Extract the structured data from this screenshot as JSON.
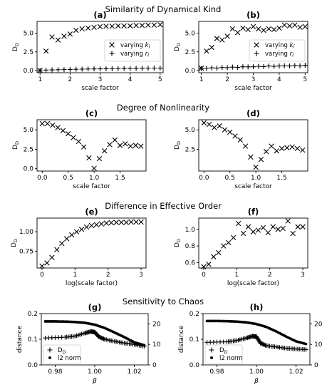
{
  "sections": [
    "Similarity of Dynamical Kind",
    "Degree of Nonlinearity",
    "Difference in Effective Order",
    "Sensitivity to Chaos"
  ],
  "chart_data": [
    {
      "id": "a",
      "title": "(a)",
      "type": "scatter",
      "xlabel": "scale factor",
      "ylabel": "D_D",
      "xlim": [
        0.9,
        5.1
      ],
      "ylim": [
        -0.3,
        6.6
      ],
      "xticks": [
        1,
        2,
        3,
        4,
        5
      ],
      "yticks": [
        0.0,
        2.5,
        5.0
      ],
      "legend": "center-right",
      "series": [
        {
          "name": "varying k_i",
          "marker": "x",
          "x": [
            1.0,
            1.2,
            1.4,
            1.6,
            1.8,
            2.0,
            2.2,
            2.4,
            2.6,
            2.8,
            3.0,
            3.2,
            3.4,
            3.6,
            3.8,
            4.0,
            4.2,
            4.4,
            4.6,
            4.8,
            5.0
          ],
          "y": [
            0.0,
            2.6,
            4.5,
            4.1,
            4.6,
            4.9,
            5.4,
            5.6,
            5.7,
            5.8,
            5.9,
            5.95,
            5.95,
            6.0,
            6.0,
            6.0,
            6.05,
            6.05,
            6.1,
            6.1,
            6.15
          ]
        },
        {
          "name": "varying r_i",
          "marker": "+",
          "x": [
            1.0,
            1.2,
            1.4,
            1.6,
            1.8,
            2.0,
            2.2,
            2.4,
            2.6,
            2.8,
            3.0,
            3.2,
            3.4,
            3.6,
            3.8,
            4.0,
            4.2,
            4.4,
            4.6,
            4.8,
            5.0
          ],
          "y": [
            0.0,
            0.05,
            0.08,
            0.1,
            0.12,
            0.14,
            0.16,
            0.18,
            0.2,
            0.21,
            0.22,
            0.23,
            0.24,
            0.25,
            0.26,
            0.27,
            0.28,
            0.29,
            0.3,
            0.31,
            0.32
          ]
        }
      ]
    },
    {
      "id": "b",
      "title": "(b)",
      "type": "scatter",
      "xlabel": "scale factor",
      "ylabel": "D_D",
      "xlim": [
        0.9,
        5.1
      ],
      "ylim": [
        -0.3,
        6.6
      ],
      "xticks": [
        1,
        2,
        3,
        4,
        5
      ],
      "yticks": [
        0.0,
        2.5,
        5.0
      ],
      "legend": "center-right",
      "series": [
        {
          "name": "varying k_i",
          "marker": "x",
          "x": [
            1.0,
            1.2,
            1.4,
            1.6,
            1.8,
            2.0,
            2.2,
            2.4,
            2.6,
            2.8,
            3.0,
            3.2,
            3.4,
            3.6,
            3.8,
            4.0,
            4.2,
            4.4,
            4.6,
            4.8,
            5.0
          ],
          "y": [
            0.3,
            2.6,
            3.1,
            4.3,
            4.1,
            4.6,
            5.6,
            5.1,
            5.7,
            5.5,
            5.9,
            5.6,
            5.4,
            5.6,
            5.5,
            5.7,
            6.1,
            6.0,
            6.1,
            5.8,
            5.9
          ]
        },
        {
          "name": "varying r_i",
          "marker": "+",
          "x": [
            1.0,
            1.2,
            1.4,
            1.6,
            1.8,
            2.0,
            2.2,
            2.4,
            2.6,
            2.8,
            3.0,
            3.2,
            3.4,
            3.6,
            3.8,
            4.0,
            4.2,
            4.4,
            4.6,
            4.8,
            5.0
          ],
          "y": [
            0.25,
            0.3,
            0.35,
            0.32,
            0.4,
            0.38,
            0.45,
            0.42,
            0.5,
            0.48,
            0.5,
            0.55,
            0.52,
            0.6,
            0.55,
            0.6,
            0.62,
            0.6,
            0.65,
            0.62,
            0.7
          ]
        }
      ]
    },
    {
      "id": "c",
      "title": "(c)",
      "type": "scatter",
      "xlabel": "scale factor",
      "ylabel": "D_D",
      "xlim": [
        -0.1,
        2.0
      ],
      "ylim": [
        -0.3,
        6.3
      ],
      "xticks": [
        0.0,
        0.5,
        1.0,
        1.5
      ],
      "yticks": [
        0.0,
        2.5,
        5.0
      ],
      "series": [
        {
          "name": "",
          "marker": "x",
          "x": [
            0.0,
            0.1,
            0.2,
            0.3,
            0.4,
            0.5,
            0.6,
            0.7,
            0.8,
            0.9,
            1.0,
            1.1,
            1.2,
            1.3,
            1.4,
            1.5,
            1.6,
            1.7,
            1.8,
            1.9
          ],
          "y": [
            5.8,
            5.8,
            5.6,
            5.3,
            4.9,
            4.5,
            4.0,
            3.5,
            2.8,
            1.4,
            0.05,
            1.3,
            2.3,
            3.1,
            3.7,
            3.0,
            3.2,
            2.9,
            3.0,
            2.9
          ]
        }
      ]
    },
    {
      "id": "d",
      "title": "(d)",
      "type": "scatter",
      "xlabel": "scale factor",
      "ylabel": "D_D",
      "xlim": [
        -0.1,
        2.0
      ],
      "ylim": [
        -0.3,
        6.3
      ],
      "xticks": [
        0.0,
        0.5,
        1.0,
        1.5
      ],
      "yticks": [
        2.5,
        5.0
      ],
      "series": [
        {
          "name": "",
          "marker": "x",
          "x": [
            0.0,
            0.1,
            0.2,
            0.3,
            0.4,
            0.5,
            0.6,
            0.7,
            0.8,
            0.9,
            1.0,
            1.1,
            1.2,
            1.3,
            1.4,
            1.5,
            1.6,
            1.7,
            1.8,
            1.9
          ],
          "y": [
            5.9,
            5.7,
            5.3,
            5.5,
            5.0,
            4.7,
            4.2,
            3.7,
            2.9,
            1.5,
            0.2,
            1.2,
            2.2,
            2.9,
            2.3,
            2.6,
            2.7,
            2.8,
            2.6,
            2.4
          ]
        }
      ]
    },
    {
      "id": "e",
      "title": "(e)",
      "type": "scatter",
      "xlabel": "log(scale factor)",
      "ylabel": "D_D",
      "xlim": [
        -0.15,
        3.15
      ],
      "ylim": [
        0.535,
        1.175
      ],
      "xticks": [
        0,
        1,
        2,
        3
      ],
      "yticks": [
        0.75,
        1.0
      ],
      "series": [
        {
          "name": "",
          "marker": "x",
          "x": [
            0.0,
            0.15,
            0.3,
            0.45,
            0.6,
            0.75,
            0.9,
            1.05,
            1.2,
            1.35,
            1.5,
            1.65,
            1.8,
            1.95,
            2.1,
            2.25,
            2.4,
            2.55,
            2.7,
            2.85,
            3.0
          ],
          "y": [
            0.56,
            0.6,
            0.67,
            0.77,
            0.85,
            0.91,
            0.96,
            1.0,
            1.03,
            1.06,
            1.08,
            1.09,
            1.1,
            1.11,
            1.115,
            1.12,
            1.12,
            1.12,
            1.125,
            1.125,
            1.125
          ]
        }
      ]
    },
    {
      "id": "f",
      "title": "(f)",
      "type": "scatter",
      "xlabel": "log(scale factor)",
      "ylabel": "D_D",
      "xlim": [
        -0.15,
        3.15
      ],
      "ylim": [
        0.535,
        1.135
      ],
      "xticks": [
        0,
        1,
        2,
        3
      ],
      "yticks": [
        0.6,
        0.8,
        1.0
      ],
      "series": [
        {
          "name": "",
          "marker": "x",
          "x": [
            0.0,
            0.15,
            0.3,
            0.45,
            0.6,
            0.75,
            0.9,
            1.05,
            1.2,
            1.35,
            1.5,
            1.65,
            1.8,
            1.95,
            2.1,
            2.25,
            2.4,
            2.55,
            2.7,
            2.85,
            3.0
          ],
          "y": [
            0.55,
            0.58,
            0.67,
            0.72,
            0.8,
            0.84,
            0.9,
            1.07,
            0.95,
            1.03,
            0.97,
            0.99,
            1.02,
            0.96,
            1.03,
            1.0,
            1.01,
            1.1,
            0.95,
            1.03,
            1.03
          ]
        }
      ]
    },
    {
      "id": "g",
      "title": "(g)",
      "type": "scatter",
      "xlabel": "β",
      "ylabel": "distance",
      "xlim": [
        0.973,
        1.027
      ],
      "ylim": [
        0.0,
        0.2
      ],
      "y2lim": [
        0,
        25
      ],
      "xticks": [
        0.98,
        1.0,
        1.02
      ],
      "yticks": [
        0.0,
        0.1,
        0.2
      ],
      "y2ticks": [
        0,
        10,
        20
      ],
      "legend": "lower-left",
      "series": [
        {
          "name": "D_D",
          "marker": "+",
          "axis": "left",
          "points": [
            [
              0.975,
              0.105
            ],
            [
              0.985,
              0.108
            ],
            [
              0.99,
              0.112
            ],
            [
              0.995,
              0.124
            ],
            [
              0.998,
              0.13
            ],
            [
              1.0,
              0.128
            ],
            [
              1.002,
              0.11
            ],
            [
              1.005,
              0.1
            ],
            [
              1.01,
              0.092
            ],
            [
              1.015,
              0.085
            ],
            [
              1.02,
              0.08
            ],
            [
              1.025,
              0.073
            ]
          ]
        },
        {
          "name": "l2 norm",
          "marker": "dot",
          "axis": "right",
          "points": [
            [
              0.975,
              21.2
            ],
            [
              0.98,
              21.2
            ],
            [
              0.985,
              21.1
            ],
            [
              0.99,
              20.9
            ],
            [
              0.995,
              20.5
            ],
            [
              1.0,
              19.6
            ],
            [
              1.005,
              18.0
            ],
            [
              1.01,
              15.8
            ],
            [
              1.015,
              13.5
            ],
            [
              1.02,
              11.0
            ],
            [
              1.025,
              9.6
            ]
          ]
        }
      ]
    },
    {
      "id": "h",
      "title": "(h)",
      "type": "scatter",
      "xlabel": "β",
      "ylabel": "distance",
      "xlim": [
        0.973,
        1.027
      ],
      "ylim": [
        0.0,
        0.2
      ],
      "y2lim": [
        0,
        25
      ],
      "xticks": [
        0.98,
        1.0,
        1.02
      ],
      "yticks": [
        0.0,
        0.1,
        0.2
      ],
      "y2ticks": [
        0,
        10,
        20
      ],
      "legend": "lower-left",
      "series": [
        {
          "name": "D_D",
          "marker": "+",
          "axis": "left",
          "points": [
            [
              0.975,
              0.088
            ],
            [
              0.985,
              0.09
            ],
            [
              0.99,
              0.095
            ],
            [
              0.995,
              0.105
            ],
            [
              0.998,
              0.112
            ],
            [
              1.0,
              0.11
            ],
            [
              1.002,
              0.085
            ],
            [
              1.005,
              0.075
            ],
            [
              1.01,
              0.07
            ],
            [
              1.015,
              0.065
            ],
            [
              1.02,
              0.062
            ],
            [
              1.025,
              0.06
            ]
          ]
        },
        {
          "name": "l2 norm",
          "marker": "dot",
          "axis": "right",
          "points": [
            [
              0.975,
              21.4
            ],
            [
              0.98,
              21.4
            ],
            [
              0.985,
              21.3
            ],
            [
              0.99,
              21.1
            ],
            [
              0.995,
              20.7
            ],
            [
              1.0,
              19.9
            ],
            [
              1.005,
              18.5
            ],
            [
              1.01,
              16.3
            ],
            [
              1.015,
              13.8
            ],
            [
              1.02,
              11.5
            ],
            [
              1.025,
              10.2
            ]
          ]
        }
      ]
    }
  ]
}
